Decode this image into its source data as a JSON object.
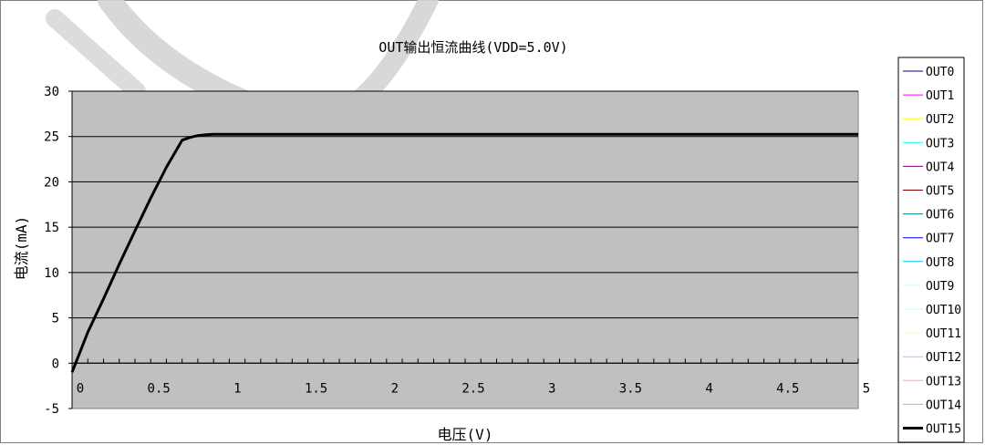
{
  "chart_data": {
    "type": "line",
    "title": "OUT输出恒流曲线(VDD=5.0V)",
    "xlabel": "电压(V)",
    "ylabel": "电流(mA)",
    "xlim": [
      0,
      5
    ],
    "ylim": [
      -5,
      30
    ],
    "x_ticks": [
      0,
      0.5,
      1,
      1.5,
      2,
      2.5,
      3,
      3.5,
      4,
      4.5,
      5
    ],
    "x_tick_labels": [
      "0",
      "0.5",
      "1",
      "1.5",
      "2",
      "2.5",
      "3",
      "3.5",
      "4",
      "4.5",
      "5"
    ],
    "y_ticks": [
      -5,
      0,
      5,
      10,
      15,
      20,
      25,
      30
    ],
    "y_tick_labels": [
      "-5",
      "0",
      "5",
      "10",
      "15",
      "20",
      "25",
      "30"
    ],
    "grid": true,
    "legend_position": "right",
    "colors": {
      "plot_bg": "#c0c0c0",
      "grid": "#000000"
    },
    "series": [
      {
        "name": "OUT0",
        "color": "#000080",
        "width": 1,
        "x": [],
        "y": []
      },
      {
        "name": "OUT1",
        "color": "#ff00ff",
        "width": 1,
        "x": [],
        "y": []
      },
      {
        "name": "OUT2",
        "color": "#ffff00",
        "width": 1,
        "x": [],
        "y": []
      },
      {
        "name": "OUT3",
        "color": "#00ffff",
        "width": 1,
        "x": [],
        "y": []
      },
      {
        "name": "OUT4",
        "color": "#800080",
        "width": 1,
        "x": [],
        "y": []
      },
      {
        "name": "OUT5",
        "color": "#800000",
        "width": 1,
        "x": [],
        "y": []
      },
      {
        "name": "OUT6",
        "color": "#008080",
        "width": 1,
        "x": [],
        "y": []
      },
      {
        "name": "OUT7",
        "color": "#0000ff",
        "width": 1,
        "x": [],
        "y": []
      },
      {
        "name": "OUT8",
        "color": "#00ccff",
        "width": 1,
        "x": [],
        "y": []
      },
      {
        "name": "OUT9",
        "color": "#ccffff",
        "width": 1,
        "x": [],
        "y": []
      },
      {
        "name": "OUT10",
        "color": "#ccffcc",
        "width": 1,
        "x": [],
        "y": []
      },
      {
        "name": "OUT11",
        "color": "#ffff99",
        "width": 1,
        "x": [],
        "y": []
      },
      {
        "name": "OUT12",
        "color": "#99ccff",
        "width": 1,
        "x": [],
        "y": []
      },
      {
        "name": "OUT13",
        "color": "#ff99cc",
        "width": 1,
        "x": [],
        "y": []
      },
      {
        "name": "OUT14",
        "color": "#cc99ff",
        "width": 1,
        "x": [],
        "y": []
      },
      {
        "name": "OUT15",
        "color": "#000000",
        "width": 3,
        "x": [
          0,
          0.05,
          0.1,
          0.2,
          0.3,
          0.4,
          0.5,
          0.6,
          0.7,
          0.75,
          0.8,
          0.85,
          0.9,
          1,
          1.5,
          2,
          2.5,
          3,
          3.5,
          4,
          4.5,
          5
        ],
        "y": [
          -1,
          1.2,
          3.4,
          7.1,
          10.9,
          14.6,
          18.2,
          21.6,
          24.6,
          24.9,
          25.1,
          25.2,
          25.25,
          25.25,
          25.25,
          25.25,
          25.25,
          25.25,
          25.25,
          25.25,
          25.25,
          25.25
        ]
      }
    ]
  }
}
